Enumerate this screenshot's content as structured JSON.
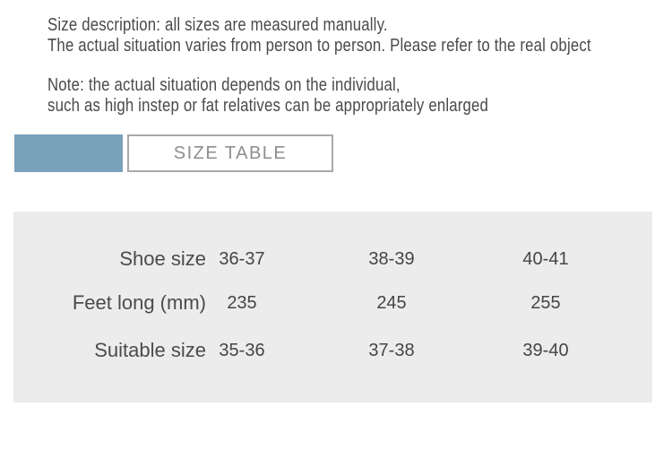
{
  "intro": {
    "line1": "Size description: all sizes are measured manually.",
    "line2": "The actual situation varies from person to person. Please refer to the real object"
  },
  "note": {
    "line1": "Note: the actual situation depends on the individual,",
    "line2": "such as high instep or fat relatives can be appropriately enlarged"
  },
  "header": {
    "size_table_label": "SIZE TABLE"
  },
  "size_table": {
    "rows": [
      {
        "label": "Shoe size",
        "values": [
          "36-37",
          "38-39",
          "40-41"
        ]
      },
      {
        "label": "Feet long (mm)",
        "values": [
          "235",
          "245",
          "255"
        ]
      },
      {
        "label": "Suitable size",
        "values": [
          "35-36",
          "37-38",
          "39-40"
        ]
      }
    ]
  },
  "colors": {
    "accent_blue": "#7aa1ba",
    "panel_gray": "#ececec",
    "header_border_gray": "#a9a9a9",
    "text_gray": "#4a4a4a"
  }
}
